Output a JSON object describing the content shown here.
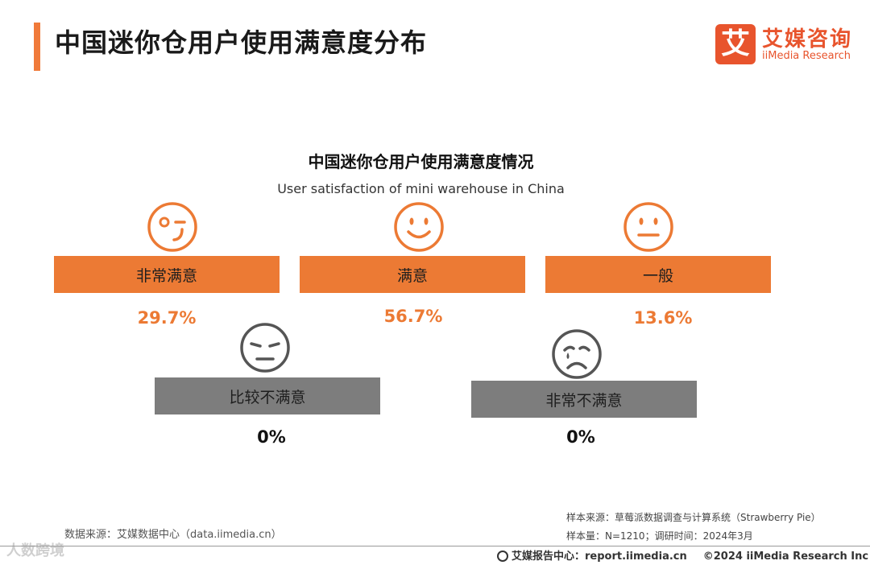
{
  "header": {
    "title": "中国迷你仓用户使用满意度分布",
    "logo_mark": "艾",
    "logo_cn": "艾媒咨询",
    "logo_en": "iiMedia Research"
  },
  "chart_data": {
    "type": "table",
    "title": "中国迷你仓用户使用满意度情况",
    "subtitle": "User satisfaction of mini warehouse in China",
    "categories": [
      "非常满意",
      "满意",
      "一般",
      "比较不满意",
      "非常不满意"
    ],
    "values": [
      29.7,
      56.7,
      13.6,
      0,
      0
    ],
    "value_labels": [
      "29.7%",
      "56.7%",
      "13.6%",
      "0%",
      "0%"
    ],
    "icons": [
      "wink-face-icon",
      "smile-face-icon",
      "neutral-face-icon",
      "unhappy-face-icon",
      "crying-face-icon"
    ],
    "colors": [
      "#ec7a34",
      "#ec7a34",
      "#ec7a34",
      "#7d7d7d",
      "#7d7d7d"
    ]
  },
  "footer": {
    "data_source": "数据来源：艾媒数据中心（data.iimedia.cn）",
    "sample_source": "样本来源：草莓派数据调查与计算系统（Strawberry Pie）",
    "sample_size": "样本量：N=1210；调研时间：2024年3月",
    "report_center": "艾媒报告中心：report.iimedia.cn",
    "copyright": "©2024  iiMedia Research  Inc",
    "watermark": "人数跨境"
  },
  "colors": {
    "accent": "#f07a3a",
    "brand": "#e8542d",
    "positive": "#ec7a34",
    "negative": "#7d7d7d"
  }
}
